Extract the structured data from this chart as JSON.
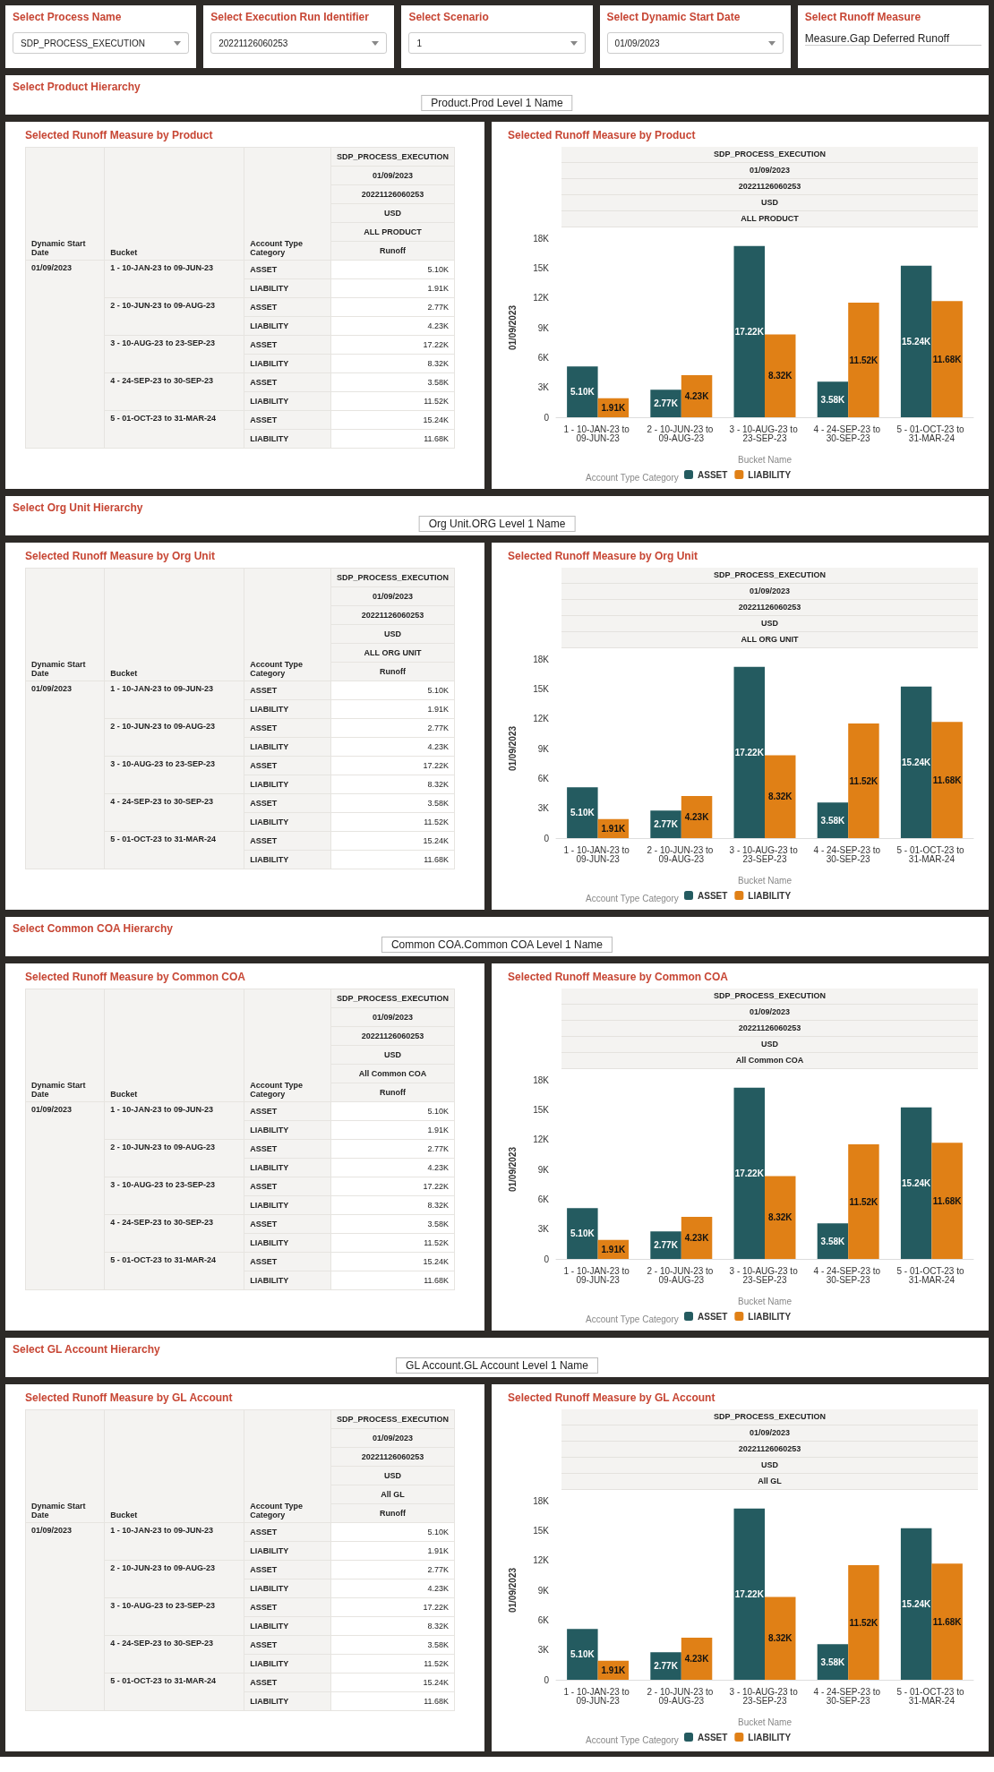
{
  "chart_data": [
    {
      "type": "other",
      "annotations": [
        "Select Process Name",
        "SDP_PROCESS_EXECUTION",
        "Select Execution Run Identifier",
        "20221126060253",
        "Select Scenario",
        "1",
        "Select Dynamic Start Date",
        "01/09/2023",
        "Select Runoff Measure",
        "Measure.Gap Deferred Runoff"
      ]
    },
    {
      "type": "bar",
      "title": "Selected Runoff Measure by Product",
      "annotations": [
        "Select Product Hierarchy",
        "Product.Prod Level 1 Name",
        "SDP_PROCESS_EXECUTION",
        "01/09/2023",
        "20221126060253",
        "USD",
        "ALL PRODUCT",
        "Dynamic Start Date",
        "Bucket",
        "Account Type Category",
        "Runoff",
        "01/09/2023"
      ],
      "xlabel": "Bucket Name",
      "ylabel": "01/09/2023",
      "legend_title": "Account Type Category",
      "legend": "bottom",
      "categories": [
        "1 - 10-JAN-23 to 09-JUN-23",
        "2 - 10-JUN-23 to 09-AUG-23",
        "3 - 10-AUG-23 to 23-SEP-23",
        "4 - 24-SEP-23 to 30-SEP-23",
        "5 - 01-OCT-23 to 31-MAR-24"
      ],
      "series": [
        {
          "name": "ASSET",
          "color": "#245b60",
          "values": [
            5100,
            2770,
            17220,
            3580,
            15240
          ],
          "value_labels": [
            "5.10K",
            "2.77K",
            "17.22K",
            "3.58K",
            "15.24K"
          ]
        },
        {
          "name": "LIABILITY",
          "color": "#e08016",
          "values": [
            1910,
            4230,
            8320,
            11520,
            11680
          ],
          "value_labels": [
            "1.91K",
            "4.23K",
            "8.32K",
            "11.52K",
            "11.68K"
          ]
        }
      ],
      "ylim": [
        0,
        18000
      ],
      "yticks": [
        {
          "value": 0,
          "label": "0"
        },
        {
          "value": 3000,
          "label": "3K"
        },
        {
          "value": 6000,
          "label": "6K"
        },
        {
          "value": 9000,
          "label": "9K"
        },
        {
          "value": 12000,
          "label": "12K"
        },
        {
          "value": 15000,
          "label": "15K"
        },
        {
          "value": 18000,
          "label": "18K"
        }
      ]
    },
    {
      "type": "bar",
      "title": "Selected Runoff Measure by Org Unit",
      "annotations": [
        "Select Org Unit Hierarchy",
        "Org Unit.ORG Level 1 Name",
        "SDP_PROCESS_EXECUTION",
        "01/09/2023",
        "20221126060253",
        "USD",
        "ALL ORG UNIT",
        "Dynamic Start Date",
        "Bucket",
        "Account Type Category",
        "Runoff",
        "01/09/2023"
      ],
      "xlabel": "Bucket Name",
      "ylabel": "01/09/2023",
      "legend_title": "Account Type Category",
      "legend": "bottom",
      "categories": [
        "1 - 10-JAN-23 to 09-JUN-23",
        "2 - 10-JUN-23 to 09-AUG-23",
        "3 - 10-AUG-23 to 23-SEP-23",
        "4 - 24-SEP-23 to 30-SEP-23",
        "5 - 01-OCT-23 to 31-MAR-24"
      ],
      "series": [
        {
          "name": "ASSET",
          "color": "#245b60",
          "values": [
            5100,
            2770,
            17220,
            3580,
            15240
          ],
          "value_labels": [
            "5.10K",
            "2.77K",
            "17.22K",
            "3.58K",
            "15.24K"
          ]
        },
        {
          "name": "LIABILITY",
          "color": "#e08016",
          "values": [
            1910,
            4230,
            8320,
            11520,
            11680
          ],
          "value_labels": [
            "1.91K",
            "4.23K",
            "8.32K",
            "11.52K",
            "11.68K"
          ]
        }
      ],
      "ylim": [
        0,
        18000
      ],
      "yticks": [
        {
          "value": 0,
          "label": "0"
        },
        {
          "value": 3000,
          "label": "3K"
        },
        {
          "value": 6000,
          "label": "6K"
        },
        {
          "value": 9000,
          "label": "9K"
        },
        {
          "value": 12000,
          "label": "12K"
        },
        {
          "value": 15000,
          "label": "15K"
        },
        {
          "value": 18000,
          "label": "18K"
        }
      ]
    },
    {
      "type": "bar",
      "title": "Selected Runoff Measure by Common COA",
      "annotations": [
        "Select Common COA Hierarchy",
        "Common COA.Common COA Level 1 Name",
        "SDP_PROCESS_EXECUTION",
        "01/09/2023",
        "20221126060253",
        "USD",
        "All Common COA",
        "Dynamic Start Date",
        "Bucket",
        "Account Type Category",
        "Runoff",
        "01/09/2023"
      ],
      "xlabel": "Bucket Name",
      "ylabel": "01/09/2023",
      "legend_title": "Account Type Category",
      "legend": "bottom",
      "categories": [
        "1 - 10-JAN-23 to 09-JUN-23",
        "2 - 10-JUN-23 to 09-AUG-23",
        "3 - 10-AUG-23 to 23-SEP-23",
        "4 - 24-SEP-23 to 30-SEP-23",
        "5 - 01-OCT-23 to 31-MAR-24"
      ],
      "series": [
        {
          "name": "ASSET",
          "color": "#245b60",
          "values": [
            5100,
            2770,
            17220,
            3580,
            15240
          ],
          "value_labels": [
            "5.10K",
            "2.77K",
            "17.22K",
            "3.58K",
            "15.24K"
          ]
        },
        {
          "name": "LIABILITY",
          "color": "#e08016",
          "values": [
            1910,
            4230,
            8320,
            11520,
            11680
          ],
          "value_labels": [
            "1.91K",
            "4.23K",
            "8.32K",
            "11.52K",
            "11.68K"
          ]
        }
      ],
      "ylim": [
        0,
        18000
      ],
      "yticks": [
        {
          "value": 0,
          "label": "0"
        },
        {
          "value": 3000,
          "label": "3K"
        },
        {
          "value": 6000,
          "label": "6K"
        },
        {
          "value": 9000,
          "label": "9K"
        },
        {
          "value": 12000,
          "label": "12K"
        },
        {
          "value": 15000,
          "label": "15K"
        },
        {
          "value": 18000,
          "label": "18K"
        }
      ]
    },
    {
      "type": "bar",
      "title": "Selected Runoff Measure by GL Account",
      "annotations": [
        "Select GL Account Hierarchy",
        "GL Account.GL Account Level 1 Name",
        "SDP_PROCESS_EXECUTION",
        "01/09/2023",
        "20221126060253",
        "USD",
        "All GL",
        "Dynamic Start Date",
        "Bucket",
        "Account Type Category",
        "Runoff",
        "01/09/2023"
      ],
      "xlabel": "Bucket Name",
      "ylabel": "01/09/2023",
      "legend_title": "Account Type Category",
      "legend": "bottom",
      "categories": [
        "1 - 10-JAN-23 to 09-JUN-23",
        "2 - 10-JUN-23 to 09-AUG-23",
        "3 - 10-AUG-23 to 23-SEP-23",
        "4 - 24-SEP-23 to 30-SEP-23",
        "5 - 01-OCT-23 to 31-MAR-24"
      ],
      "series": [
        {
          "name": "ASSET",
          "color": "#245b60",
          "values": [
            5100,
            2770,
            17220,
            3580,
            15240
          ],
          "value_labels": [
            "5.10K",
            "2.77K",
            "17.22K",
            "3.58K",
            "15.24K"
          ]
        },
        {
          "name": "LIABILITY",
          "color": "#e08016",
          "values": [
            1910,
            4230,
            8320,
            11520,
            11680
          ],
          "value_labels": [
            "1.91K",
            "4.23K",
            "8.32K",
            "11.52K",
            "11.68K"
          ]
        }
      ],
      "ylim": [
        0,
        18000
      ],
      "yticks": [
        {
          "value": 0,
          "label": "0"
        },
        {
          "value": 3000,
          "label": "3K"
        },
        {
          "value": 6000,
          "label": "6K"
        },
        {
          "value": 9000,
          "label": "9K"
        },
        {
          "value": 12000,
          "label": "12K"
        },
        {
          "value": 15000,
          "label": "15K"
        },
        {
          "value": 18000,
          "label": "18K"
        }
      ]
    }
  ]
}
